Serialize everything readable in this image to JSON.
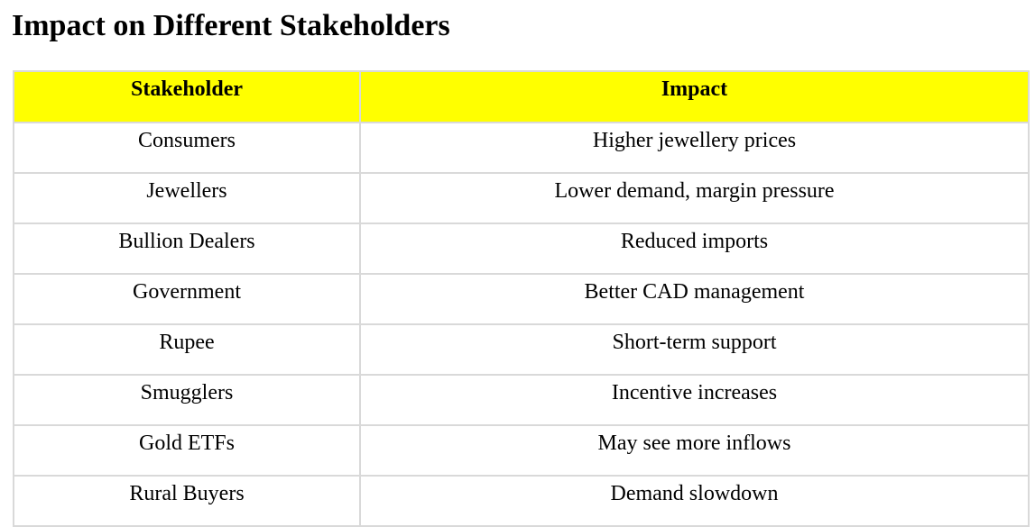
{
  "title": "Impact on Different Stakeholders",
  "colors": {
    "header_background": "#ffff00",
    "border": "#d9d9d9",
    "text": "#000000"
  },
  "table": {
    "headers": [
      "Stakeholder",
      "Impact"
    ],
    "rows": [
      [
        "Consumers",
        "Higher jewellery prices"
      ],
      [
        "Jewellers",
        "Lower demand, margin pressure"
      ],
      [
        "Bullion Dealers",
        "Reduced imports"
      ],
      [
        "Government",
        "Better CAD management"
      ],
      [
        "Rupee",
        "Short-term support"
      ],
      [
        "Smugglers",
        "Incentive increases"
      ],
      [
        "Gold ETFs",
        "May see more inflows"
      ],
      [
        "Rural Buyers",
        "Demand slowdown"
      ]
    ]
  }
}
